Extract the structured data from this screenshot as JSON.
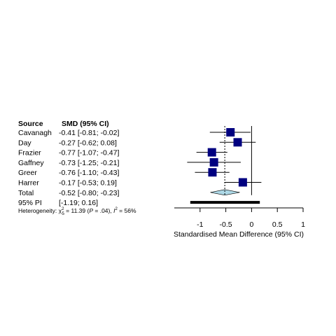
{
  "chart_data": {
    "type": "forest",
    "columns": {
      "source": "Source",
      "effect": "SMD (95% CI)"
    },
    "studies": [
      {
        "name": "Cavanagh",
        "label": "-0.41 [-0.81; -0.02]",
        "est": -0.41,
        "lo": -0.81,
        "hi": -0.02
      },
      {
        "name": "Day",
        "label": "-0.27 [-0.62;  0.08]",
        "est": -0.27,
        "lo": -0.62,
        "hi": 0.08
      },
      {
        "name": "Frazier",
        "label": "-0.77 [-1.07; -0.47]",
        "est": -0.77,
        "lo": -1.07,
        "hi": -0.47
      },
      {
        "name": "Gaffney",
        "label": "-0.73 [-1.25; -0.21]",
        "est": -0.73,
        "lo": -1.25,
        "hi": -0.21
      },
      {
        "name": "Greer",
        "label": "-0.76 [-1.10; -0.43]",
        "est": -0.76,
        "lo": -1.1,
        "hi": -0.43
      },
      {
        "name": "Harrer",
        "label": "-0.17 [-0.53;  0.19]",
        "est": -0.17,
        "lo": -0.53,
        "hi": 0.19
      }
    ],
    "total": {
      "name": "Total",
      "label": "-0.52 [-0.80; -0.23]",
      "est": -0.52,
      "lo": -0.8,
      "hi": -0.23
    },
    "prediction_interval": {
      "name": "95% PI",
      "label": "[-1.19;  0.16]",
      "lo": -1.19,
      "hi": 0.16
    },
    "heterogeneity": {
      "prefix": "Heterogeneity: ",
      "chi": "χ",
      "sup": "2",
      "sub": "5",
      "stat": " = 11.39 (",
      "p_italic": "P",
      "p_value": " = .04), ",
      "i_italic": "I",
      "i_sup": "2",
      "i_value": " = 56%"
    },
    "xaxis": {
      "ticks": [
        -1,
        -0.5,
        0,
        0.5,
        1
      ],
      "tick_labels": [
        "-1",
        "-0.5",
        "0",
        "0.5",
        "1"
      ],
      "xlim": [
        -1.5,
        1
      ],
      "label": "Standardised Mean Difference (95% CI)"
    },
    "colors": {
      "square": "#000080",
      "diamond": "#add8e6",
      "line": "#000000"
    }
  }
}
